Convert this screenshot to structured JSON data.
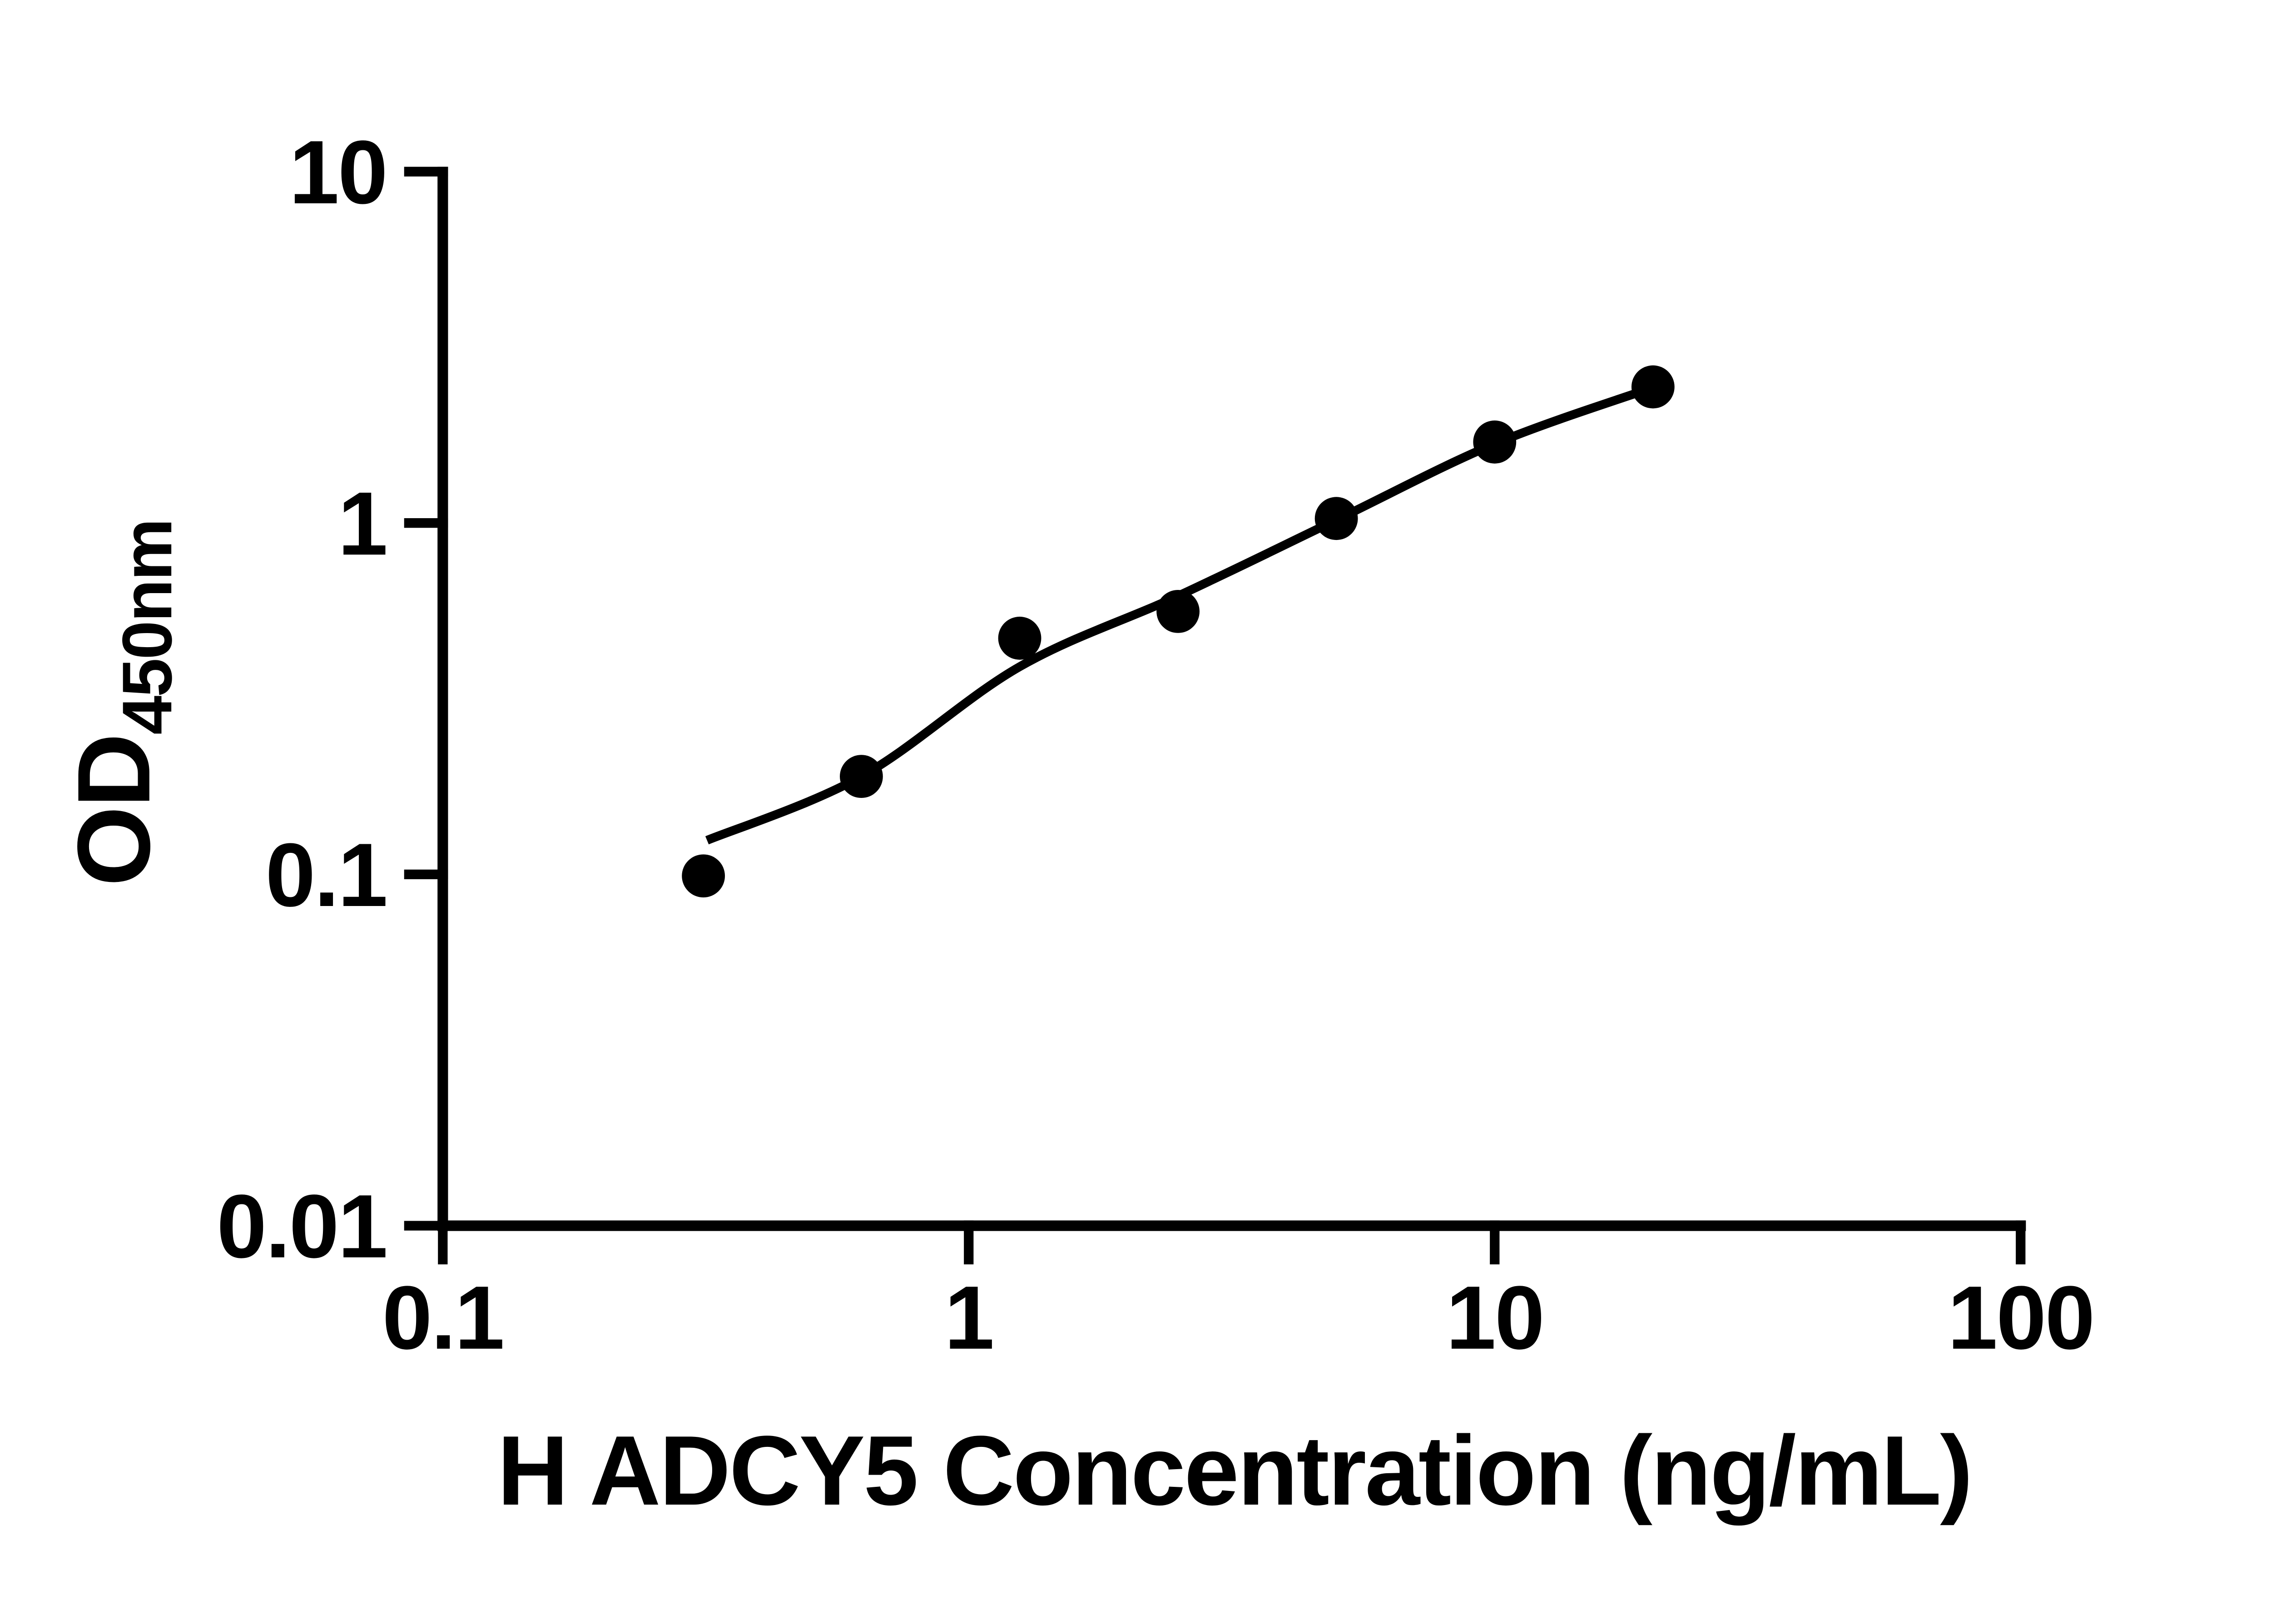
{
  "figure": {
    "background_color": "#ffffff",
    "ink_color": "#000000"
  },
  "chart_data": {
    "type": "scatter",
    "title": "",
    "xlabel": "H ADCY5 Concentration (ng/mL)",
    "ylabel_main": "OD",
    "ylabel_sub": "450nm",
    "x_scale": "log",
    "y_scale": "log",
    "xlim": [
      0.1,
      100
    ],
    "ylim": [
      0.01,
      10
    ],
    "x_ticks": [
      0.1,
      1,
      10,
      100
    ],
    "x_tick_labels": [
      "0.1",
      "1",
      "10",
      "100"
    ],
    "y_ticks": [
      10,
      1,
      0.1,
      0.01
    ],
    "y_tick_labels": [
      "10",
      "1",
      "0.1",
      "0.01"
    ],
    "grid": false,
    "legend": null,
    "marker_color": "#000000",
    "line_color": "#000000",
    "series": [
      {
        "name": "standard-points",
        "type": "scatter",
        "marker": "filled-circle",
        "x": [
          0.313,
          0.625,
          1.25,
          2.5,
          5,
          10,
          20
        ],
        "y": [
          0.099,
          0.19,
          0.47,
          0.56,
          1.03,
          1.7,
          2.44
        ]
      },
      {
        "name": "fitted-curve",
        "type": "line",
        "x": [
          0.318,
          0.625,
          1.25,
          2.5,
          5,
          10,
          20
        ],
        "y": [
          0.125,
          0.19,
          0.39,
          0.62,
          1.02,
          1.68,
          2.43
        ]
      }
    ]
  }
}
